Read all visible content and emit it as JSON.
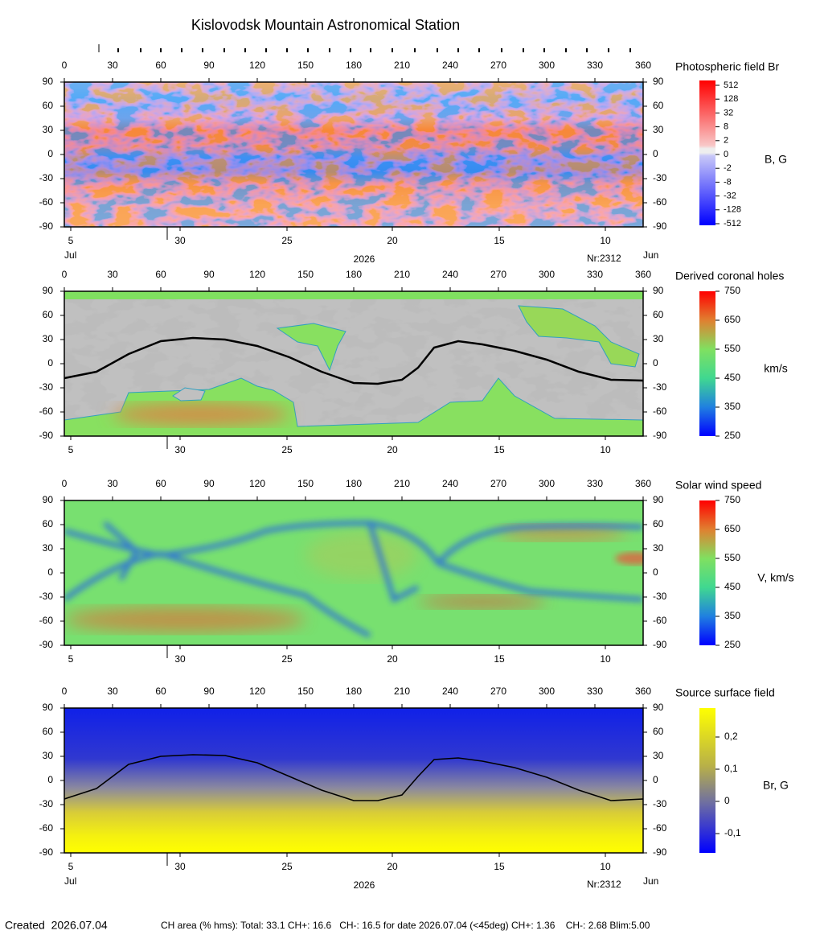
{
  "title": "Kislovodsk Mountain Astronomical Station",
  "created": "Created  2026.07.04",
  "footer": "CH area (% hms): Total: 33.1 CH+: 16.6   CH-: 16.5 for date 2026.07.04 (<45deg) CH+: 1.36    CH-: 2.68 Blim:5.00",
  "chart_data": [
    {
      "type": "heatmap",
      "colorbar_title": "Photospheric field Br",
      "colorbar_unit": "B, G",
      "xlim": [
        0,
        360
      ],
      "xticks": [
        0,
        30,
        60,
        90,
        120,
        150,
        180,
        210,
        240,
        270,
        300,
        330,
        360
      ],
      "ylim": [
        -90,
        90
      ],
      "yticks": [
        90,
        60,
        30,
        0,
        -30,
        -60,
        -90
      ],
      "x2ticks": [
        {
          "value": 4,
          "label": "5"
        },
        {
          "value": 72,
          "label": "30"
        },
        {
          "value": 138.5,
          "label": "25"
        },
        {
          "value": 204,
          "label": "20"
        },
        {
          "value": 270.5,
          "label": "15"
        },
        {
          "value": 336.5,
          "label": "10"
        }
      ],
      "colorbar_levels": [
        512,
        128,
        32,
        8,
        2,
        0,
        -2,
        -8,
        -32,
        -128,
        -512
      ],
      "start_month": "Jul",
      "year": "2026",
      "rotation": "Nr:2312",
      "end_month": "Jun"
    },
    {
      "type": "heatmap",
      "colorbar_title": "Derived coronal holes",
      "colorbar_unit": "km/s",
      "xlim": [
        0,
        360
      ],
      "xticks": [
        0,
        30,
        60,
        90,
        120,
        150,
        180,
        210,
        240,
        270,
        300,
        330,
        360
      ],
      "ylim": [
        -90,
        90
      ],
      "yticks": [
        90,
        60,
        30,
        0,
        -30,
        -60,
        -90
      ],
      "x2ticks": [
        {
          "value": 4,
          "label": "5"
        },
        {
          "value": 72,
          "label": "30"
        },
        {
          "value": 138.5,
          "label": "25"
        },
        {
          "value": 204,
          "label": "20"
        },
        {
          "value": 270.5,
          "label": "15"
        },
        {
          "value": 336.5,
          "label": "10"
        }
      ],
      "clim": [
        250,
        750
      ],
      "cticks": [
        750,
        650,
        550,
        450,
        350,
        250
      ],
      "neutral_line": {
        "x": [
          0,
          20,
          40,
          60,
          80,
          100,
          120,
          140,
          160,
          180,
          195,
          210,
          220,
          230,
          245,
          260,
          280,
          300,
          320,
          340,
          360
        ],
        "y": [
          -18,
          -10,
          12,
          28,
          32,
          30,
          22,
          8,
          -10,
          -24,
          -25,
          -20,
          -5,
          20,
          28,
          24,
          16,
          5,
          -10,
          -20,
          -21
        ]
      }
    },
    {
      "type": "heatmap",
      "colorbar_title": "Solar wind speed",
      "colorbar_unit": "V, km/s",
      "xlim": [
        0,
        360
      ],
      "xticks": [
        0,
        30,
        60,
        90,
        120,
        150,
        180,
        210,
        240,
        270,
        300,
        330,
        360
      ],
      "ylim": [
        -90,
        90
      ],
      "yticks": [
        90,
        60,
        30,
        0,
        -30,
        -60,
        -90
      ],
      "x2ticks": [
        {
          "value": 4,
          "label": "5"
        },
        {
          "value": 72,
          "label": "30"
        },
        {
          "value": 138.5,
          "label": "25"
        },
        {
          "value": 204,
          "label": "20"
        },
        {
          "value": 270.5,
          "label": "15"
        },
        {
          "value": 336.5,
          "label": "10"
        }
      ],
      "clim": [
        250,
        750
      ],
      "cticks": [
        750,
        650,
        550,
        450,
        350,
        250
      ]
    },
    {
      "type": "heatmap",
      "colorbar_title": "Source surface field",
      "colorbar_unit": "Br, G",
      "xlim": [
        0,
        360
      ],
      "xticks": [
        0,
        30,
        60,
        90,
        120,
        150,
        180,
        210,
        240,
        270,
        300,
        330,
        360
      ],
      "ylim": [
        -90,
        90
      ],
      "yticks": [
        90,
        60,
        30,
        0,
        -30,
        -60,
        -90
      ],
      "x2ticks": [
        {
          "value": 4,
          "label": "5"
        },
        {
          "value": 72,
          "label": "30"
        },
        {
          "value": 138.5,
          "label": "25"
        },
        {
          "value": 204,
          "label": "20"
        },
        {
          "value": 270.5,
          "label": "15"
        },
        {
          "value": 336.5,
          "label": "10"
        }
      ],
      "clim": [
        -0.16,
        0.29
      ],
      "cticks": [
        {
          "value": 0.2,
          "label": "0,2"
        },
        {
          "value": 0.1,
          "label": "0,1"
        },
        0,
        {
          "value": -0.1,
          "label": "-0,1"
        }
      ],
      "neutral_line": {
        "x": [
          0,
          20,
          40,
          60,
          80,
          100,
          120,
          140,
          160,
          180,
          195,
          210,
          220,
          230,
          245,
          260,
          280,
          300,
          320,
          340,
          360
        ],
        "y": [
          -23,
          -10,
          20,
          30,
          32,
          31,
          22,
          5,
          -12,
          -25,
          -25,
          -18,
          5,
          26,
          28,
          24,
          16,
          4,
          -12,
          -25,
          -23
        ]
      },
      "start_month": "Jul",
      "year": "2026",
      "rotation": "Nr:2312",
      "end_month": "Jun"
    }
  ]
}
